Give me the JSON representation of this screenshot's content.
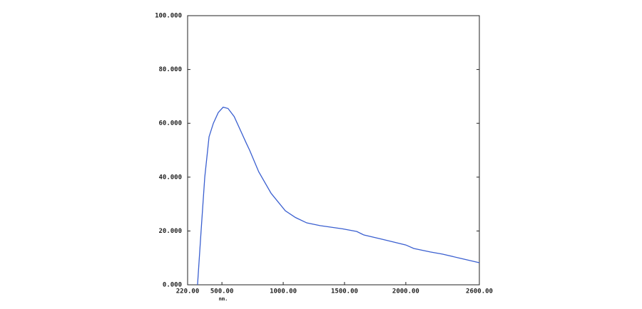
{
  "chart_data": {
    "type": "line",
    "xlabel": "nm.",
    "x": [
      301,
      330,
      360,
      395,
      430,
      470,
      510,
      550,
      600,
      650,
      700,
      726,
      800,
      901,
      1017,
      1100,
      1192,
      1300,
      1483,
      1600,
      1658,
      1800,
      1890,
      2000,
      2065,
      2200,
      2298,
      2450,
      2600
    ],
    "series": [
      {
        "color": "#3a5fd0",
        "values": [
          0,
          20,
          40,
          55,
          60,
          64,
          66,
          65.5,
          62.5,
          57.5,
          52.5,
          50,
          42,
          34,
          27.5,
          25,
          23,
          22,
          20.8,
          19.8,
          18.5,
          17,
          16,
          14.8,
          13.5,
          12.2,
          11.4,
          9.8,
          8.2
        ]
      }
    ],
    "xlim": [
      220,
      2600
    ],
    "ylim": [
      0,
      100
    ],
    "xticks": [
      {
        "value": 220,
        "label": "220.00"
      },
      {
        "value": 500,
        "label": "500.00"
      },
      {
        "value": 1000,
        "label": "1000.00"
      },
      {
        "value": 1500,
        "label": "1500.00"
      },
      {
        "value": 2000,
        "label": "2000.00"
      },
      {
        "value": 2600,
        "label": "2600.00"
      }
    ],
    "yticks": [
      {
        "value": 0,
        "label": "0.000"
      },
      {
        "value": 20,
        "label": "20.000"
      },
      {
        "value": 40,
        "label": "40.000"
      },
      {
        "value": 60,
        "label": "60.000"
      },
      {
        "value": 80,
        "label": "80.000"
      },
      {
        "value": 100,
        "label": "100.000"
      }
    ]
  }
}
